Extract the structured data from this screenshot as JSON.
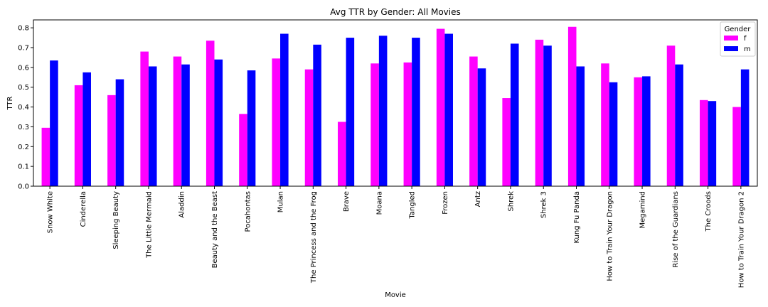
{
  "chart_data": {
    "type": "bar",
    "title": "Avg TTR by Gender: All Movies",
    "xlabel": "Movie",
    "ylabel": "TTR",
    "ylim": [
      0,
      0.84
    ],
    "yticks": [
      "0.0",
      "0.1",
      "0.2",
      "0.3",
      "0.4",
      "0.5",
      "0.6",
      "0.7",
      "0.8"
    ],
    "grid": false,
    "legend_position": "top-right",
    "legend_title": "Gender",
    "categories": [
      "Snow White",
      "Cinderella",
      "Sleeping Beauty",
      "The Little Mermaid",
      "Aladdin",
      "Beauty and the Beast",
      "Pocahontas",
      "Mulan",
      "The Princess and the Frog",
      "Brave",
      "Moana",
      "Tangled",
      "Frozen",
      "Antz",
      "Shrek",
      "Shrek 3",
      "Kung Fu Panda",
      "How to Train Your Dragon",
      "Megamind",
      "Rise of the Guardians",
      "The Croods",
      "How to Train Your Dragon 2"
    ],
    "series": [
      {
        "name": "f",
        "color": "#ff00ff",
        "values": [
          0.295,
          0.51,
          0.46,
          0.68,
          0.655,
          0.735,
          0.365,
          0.645,
          0.59,
          0.325,
          0.62,
          0.625,
          0.795,
          0.655,
          0.445,
          0.74,
          0.805,
          0.62,
          0.55,
          0.71,
          0.435,
          0.4
        ]
      },
      {
        "name": "m",
        "color": "#0000ff",
        "values": [
          0.635,
          0.575,
          0.54,
          0.605,
          0.615,
          0.64,
          0.585,
          0.77,
          0.715,
          0.75,
          0.76,
          0.75,
          0.77,
          0.595,
          0.72,
          0.71,
          0.605,
          0.525,
          0.555,
          0.615,
          0.43,
          0.59
        ]
      }
    ]
  }
}
